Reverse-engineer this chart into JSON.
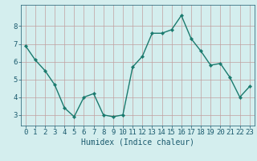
{
  "x": [
    0,
    1,
    2,
    3,
    4,
    5,
    6,
    7,
    8,
    9,
    10,
    11,
    12,
    13,
    14,
    15,
    16,
    17,
    18,
    19,
    20,
    21,
    22,
    23
  ],
  "y": [
    6.9,
    6.1,
    5.5,
    4.7,
    3.4,
    2.9,
    4.0,
    4.2,
    3.0,
    2.9,
    3.0,
    5.7,
    6.3,
    7.6,
    7.6,
    7.8,
    8.6,
    7.3,
    6.6,
    5.8,
    5.9,
    5.1,
    4.0,
    4.6
  ],
  "line_color": "#1a7a6e",
  "marker": "D",
  "marker_size": 2.2,
  "linewidth": 1.0,
  "xlabel": "Humidex (Indice chaleur)",
  "xlabel_fontsize": 7,
  "xlabel_color": "#1a5a6e",
  "tick_label_color": "#1a5a6e",
  "tick_label_fontsize": 6.5,
  "ylim": [
    2.4,
    9.2
  ],
  "xlim": [
    -0.5,
    23.5
  ],
  "yticks": [
    3,
    4,
    5,
    6,
    7,
    8
  ],
  "xticks": [
    0,
    1,
    2,
    3,
    4,
    5,
    6,
    7,
    8,
    9,
    10,
    11,
    12,
    13,
    14,
    15,
    16,
    17,
    18,
    19,
    20,
    21,
    22,
    23
  ],
  "bg_color": "#d4eeee",
  "grid_color": "#c0a0a0",
  "grid_linewidth": 0.5
}
